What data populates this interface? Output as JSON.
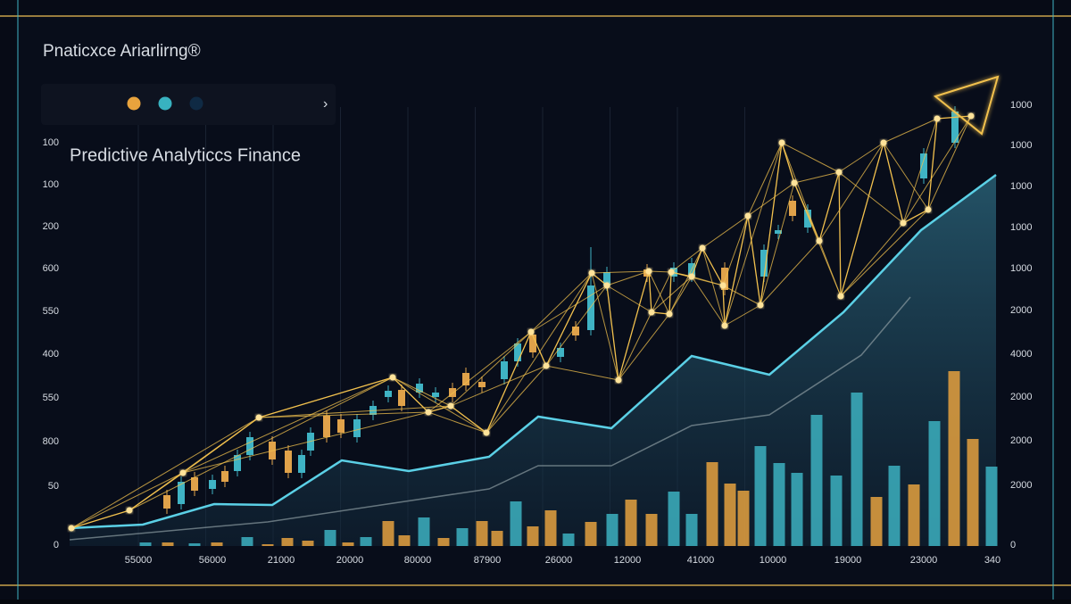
{
  "header": {
    "title": "Pnaticxce Ariarlirng®",
    "chevron": "›",
    "legend_dots": [
      "#e8a33d",
      "#38b2c0",
      "#0f2a44"
    ]
  },
  "chart_data": {
    "type": "candlestick",
    "title": "Predictive Analyticcs Finance",
    "left_axis_labels": [
      "100",
      "100",
      "200",
      "600",
      "550",
      "400",
      "550",
      "800",
      "50",
      "0"
    ],
    "right_axis_labels": [
      "1000",
      "1000",
      "1000",
      "1000",
      "1000",
      "2000",
      "4000",
      "2000",
      "2000",
      "2000",
      "0"
    ],
    "x_labels": [
      "55000",
      "56000",
      "21000",
      "20000",
      "80000",
      "87900",
      "26000",
      "12000",
      "41000",
      "10000",
      "19000",
      "23000",
      "340"
    ],
    "xlim": [
      0,
      1045
    ],
    "ylim": [
      0,
      494
    ],
    "area": {
      "color": "#5bd0e6",
      "x": [
        3,
        85,
        165,
        230,
        308,
        383,
        473,
        528,
        610,
        700,
        787,
        870,
        957,
        1041
      ],
      "values": [
        20,
        24,
        47,
        46,
        96,
        84,
        100,
        145,
        132,
        213,
        192,
        262,
        354,
        416
      ]
    },
    "trend": {
      "color": "#8a9aa0",
      "x": [
        3,
        225,
        473,
        528,
        610,
        700,
        787,
        890,
        945
      ],
      "values": [
        7,
        27,
        64,
        90,
        90,
        135,
        147,
        214,
        279
      ]
    },
    "volume": {
      "x": [
        88,
        113,
        143,
        168,
        202,
        225,
        247,
        270,
        295,
        315,
        335,
        360,
        378,
        400,
        422,
        443,
        465,
        482,
        503,
        522,
        542,
        562,
        587,
        611,
        632,
        655,
        680,
        700,
        723,
        743,
        758,
        777,
        798,
        818,
        840,
        862,
        885,
        907,
        927,
        949,
        972,
        994,
        1015,
        1036
      ],
      "values": [
        4,
        4,
        3,
        4,
        10,
        2,
        9,
        6,
        18,
        4,
        10,
        28,
        12,
        32,
        9,
        20,
        28,
        17,
        50,
        22,
        40,
        14,
        27,
        36,
        52,
        36,
        61,
        36,
        94,
        70,
        62,
        112,
        93,
        82,
        147,
        79,
        172,
        55,
        90,
        69,
        140,
        196,
        120,
        89
      ],
      "colors": [
        "#3aa9b8",
        "#d99a3e",
        "#3aa9b8",
        "#d99a3e",
        "#3aa9b8",
        "#d99a3e",
        "#d99a3e",
        "#d99a3e",
        "#3aa9b8",
        "#d99a3e",
        "#3aa9b8",
        "#d99a3e",
        "#d99a3e",
        "#3aa9b8",
        "#d99a3e",
        "#3aa9b8",
        "#d99a3e",
        "#d99a3e",
        "#3aa9b8",
        "#d99a3e",
        "#d99a3e",
        "#3aa9b8",
        "#d99a3e",
        "#3aa9b8",
        "#d99a3e",
        "#d99a3e",
        "#3aa9b8",
        "#3aa9b8",
        "#d99a3e",
        "#d99a3e",
        "#d99a3e",
        "#3aa9b8",
        "#3aa9b8",
        "#3aa9b8",
        "#3aa9b8",
        "#3aa9b8",
        "#3aa9b8",
        "#d99a3e",
        "#3aa9b8",
        "#d99a3e",
        "#3aa9b8",
        "#d99a3e",
        "#d99a3e",
        "#3aa9b8"
      ]
    },
    "candles": {
      "up_color": "#3fb3c4",
      "down_color": "#e0a24a",
      "x": [
        112,
        128,
        143,
        163,
        177,
        191,
        205,
        230,
        248,
        263,
        273,
        291,
        307,
        325,
        343,
        360,
        375,
        395,
        413,
        432,
        447,
        465,
        490,
        505,
        522,
        553,
        570,
        587,
        605,
        650,
        680,
        700,
        737,
        781,
        797,
        813,
        830,
        960,
        995
      ],
      "open": [
        57,
        47,
        77,
        64,
        84,
        84,
        102,
        117,
        107,
        82,
        107,
        146,
        142,
        122,
        147,
        167,
        175,
        172,
        167,
        177,
        194,
        184,
        187,
        207,
        237,
        212,
        246,
        242,
        292,
        310,
        302,
        302,
        312,
        302,
        350,
        387,
        357,
        412,
        452
      ],
      "close": [
        42,
        72,
        62,
        74,
        72,
        102,
        122,
        97,
        82,
        102,
        127,
        122,
        127,
        142,
        157,
        174,
        157,
        182,
        172,
        167,
        180,
        178,
        207,
        227,
        217,
        222,
        236,
        292,
        307,
        302,
        312,
        317,
        287,
        332,
        354,
        370,
        377,
        440,
        487
      ],
      "high": [
        63,
        78,
        83,
        80,
        90,
        108,
        128,
        123,
        113,
        108,
        133,
        152,
        148,
        148,
        163,
        180,
        181,
        188,
        178,
        183,
        200,
        190,
        213,
        233,
        243,
        228,
        252,
        335,
        313,
        316,
        318,
        323,
        318,
        338,
        360,
        393,
        383,
        446,
        493
      ],
      "low": [
        36,
        41,
        56,
        58,
        66,
        78,
        96,
        91,
        76,
        76,
        101,
        116,
        121,
        116,
        141,
        161,
        151,
        166,
        161,
        161,
        174,
        172,
        181,
        201,
        211,
        206,
        230,
        236,
        286,
        296,
        296,
        296,
        281,
        296,
        344,
        364,
        351,
        406,
        446
      ]
    },
    "network": {
      "color": "#f2c14e",
      "x": [
        5,
        70,
        130,
        215,
        365,
        405,
        430,
        470,
        520,
        537,
        588,
        605,
        618,
        652,
        655,
        675,
        677,
        700,
        712,
        735,
        737,
        763,
        777,
        801,
        815,
        843,
        865,
        867,
        915,
        937,
        965,
        975,
        1013
      ],
      "values": [
        20,
        40,
        82,
        144,
        189,
        150,
        157,
        127,
        240,
        202,
        306,
        292,
        186,
        308,
        262,
        260,
        307,
        302,
        334,
        292,
        247,
        370,
        270,
        452,
        407,
        342,
        419,
        280,
        452,
        362,
        377,
        479,
        482
      ]
    }
  }
}
